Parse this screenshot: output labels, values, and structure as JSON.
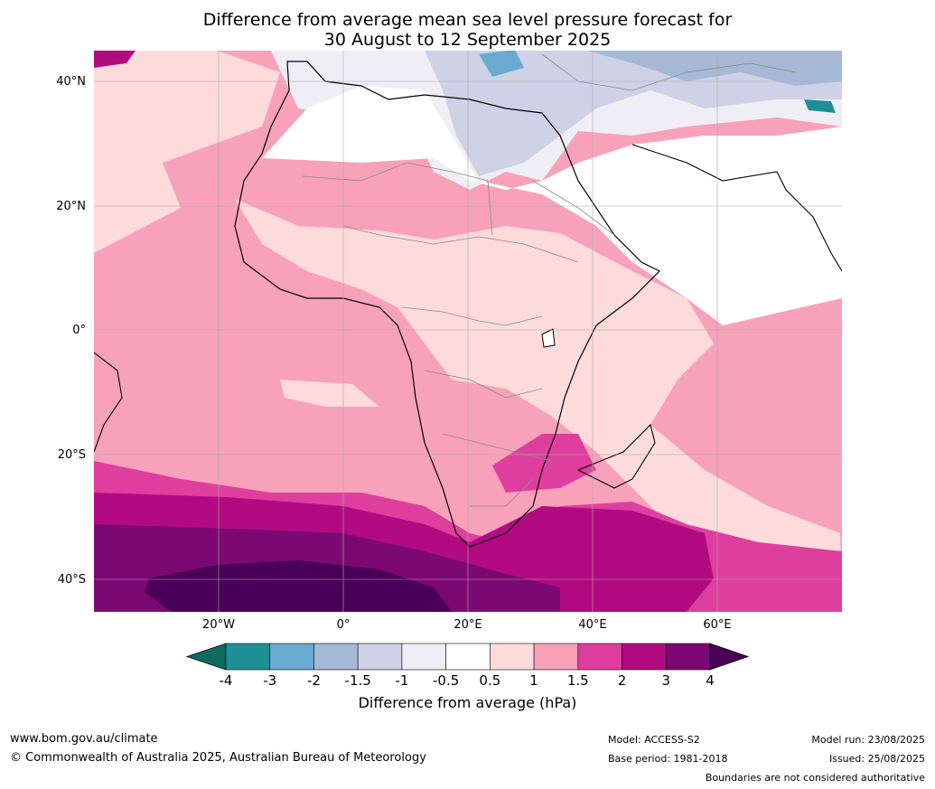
{
  "title_line1": "Difference from average mean sea level pressure forecast for",
  "title_line2": "30 August to 12 September 2025",
  "lat_labels": [
    "40°N",
    "20°N",
    "0°",
    "20°S",
    "40°S"
  ],
  "lon_labels": [
    "20°W",
    "0°",
    "20°E",
    "40°E",
    "60°E"
  ],
  "colorbar": {
    "title": "Difference from average (hPa)",
    "ticks": [
      "-4",
      "-3",
      "-2",
      "-1.5",
      "-1",
      "-0.5",
      "0.5",
      "1",
      "1.5",
      "2",
      "3",
      "4"
    ],
    "colors": [
      "#1f8f96",
      "#6aaad1",
      "#a6bad7",
      "#cfd2e6",
      "#f0eef5",
      "#ffffff",
      "#fddbdb",
      "#f8a1bb",
      "#de3f9f",
      "#b20b82",
      "#7c0874"
    ],
    "under_color": "#0b6b5f",
    "over_color": "#4a0058"
  },
  "footer": {
    "url": "www.bom.gov.au/climate",
    "copyright": "© Commonwealth of Australia 2025, Australian Bureau of Meteorology",
    "model": "Model: ACCESS-S2",
    "base_period": "Base period: 1981-2018",
    "model_run": "Model run: 23/08/2025",
    "issued": "Issued: 25/08/2025",
    "disclaimer": "Boundaries are not considered authoritative"
  }
}
